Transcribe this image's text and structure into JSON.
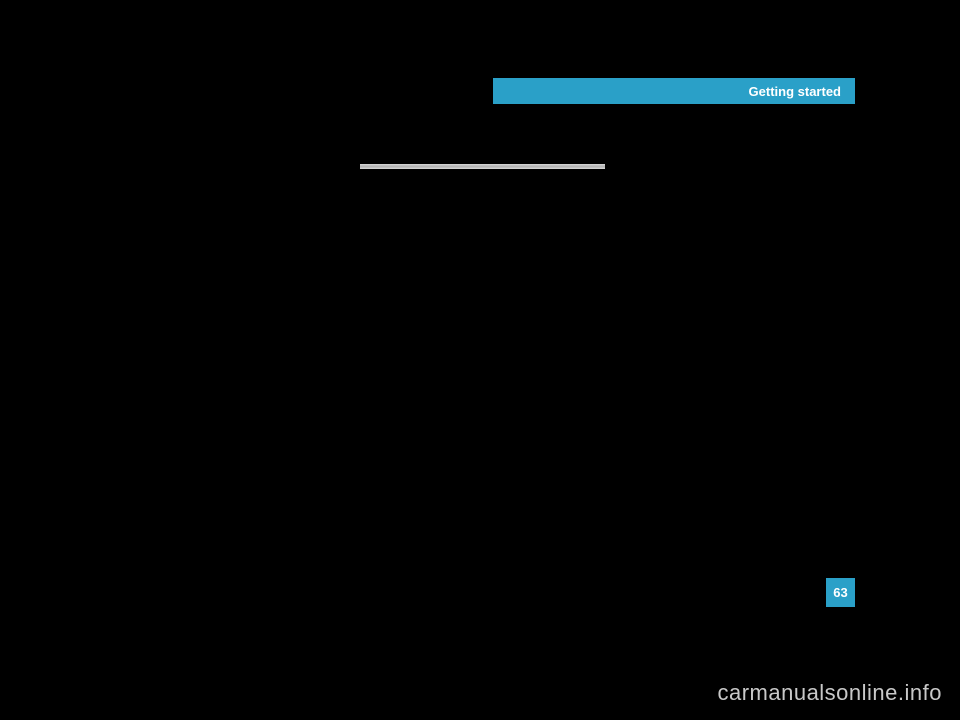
{
  "header": {
    "title": "Getting started",
    "band_color": "#2aa0c8",
    "text_color": "#ffffff",
    "title_fontsize": 13
  },
  "divider": {
    "color_top": "#d8d8d8",
    "color_mid": "#b0b0b0"
  },
  "page_number": {
    "value": "63",
    "box_color": "#2aa0c8",
    "text_color": "#ffffff",
    "fontsize": 13
  },
  "watermark": {
    "text": "carmanualsonline.info",
    "color": "#c8c8c8",
    "fontsize": 22
  },
  "background_color": "#000000"
}
